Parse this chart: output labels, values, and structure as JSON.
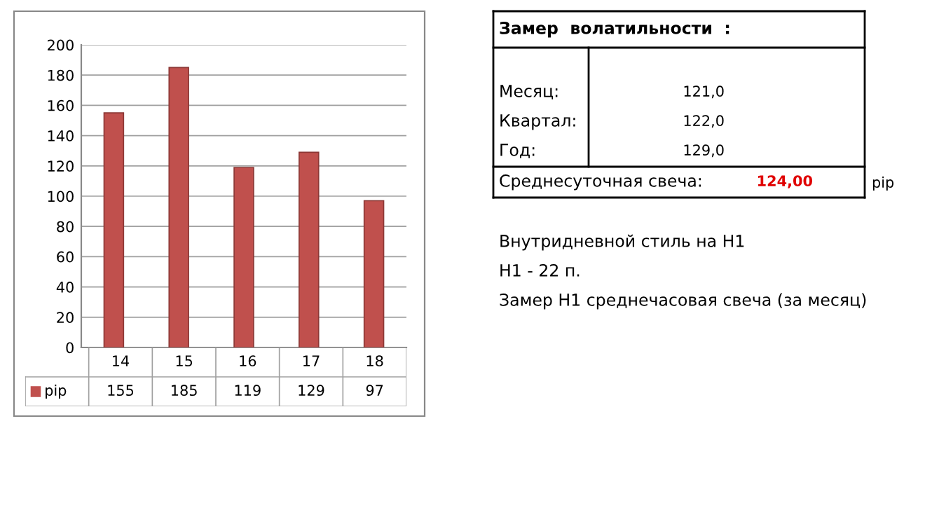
{
  "chart_data": [
    {
      "type": "bar",
      "categories": [
        "14",
        "15",
        "16",
        "17",
        "18"
      ],
      "series": [
        {
          "name": "pip",
          "color": "#c0504d",
          "values": [
            155,
            185,
            119,
            129,
            97
          ]
        }
      ],
      "ylim": [
        0,
        200
      ],
      "yticks": [
        0,
        20,
        40,
        60,
        80,
        100,
        120,
        140,
        160,
        180,
        200
      ],
      "grid": "y",
      "data_labels": true,
      "legend": "bottom"
    },
    {
      "type": "other",
      "annotations": [
        "Замер  волатильности  :",
        "Месяц:",
        "121,0",
        "Квартал:",
        "122,0",
        "Год:",
        "129,0",
        "Среднесуточная свеча:",
        "124,00",
        "pip",
        "Внутридневной стиль на H1",
        "H1 - 22 п.",
        "Замер H1 среднечасовая свеча (за месяц)"
      ]
    }
  ]
}
